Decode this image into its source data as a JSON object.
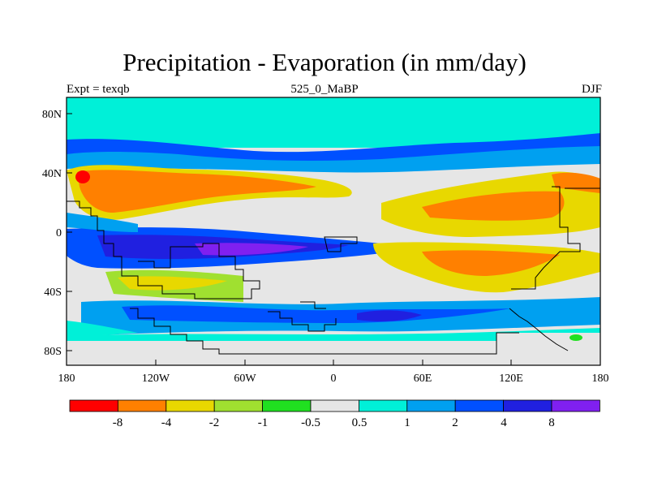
{
  "title": "Precipitation - Evaporation (in mm/day)",
  "subtitle_left": "Expt = texqb",
  "subtitle_center": "525_0_MaBP",
  "subtitle_right": "DJF",
  "x_ticks": [
    "180",
    "120W",
    "60W",
    "0",
    "60E",
    "120E",
    "180"
  ],
  "y_ticks": [
    "80N",
    "40N",
    "0",
    "40S",
    "80S"
  ],
  "colorbar": {
    "colors": [
      "#ff0000",
      "#ff8000",
      "#e8d800",
      "#a0e030",
      "#20e020",
      "#e6e6e6",
      "#00f0d8",
      "#00a0f0",
      "#0050ff",
      "#2020e0",
      "#8020f0"
    ],
    "labels": [
      "-8",
      "-4",
      "-2",
      "-1",
      "-0.5",
      "0.5",
      "1",
      "2",
      "4",
      "8"
    ]
  },
  "land_color": "#e6e6e6"
}
